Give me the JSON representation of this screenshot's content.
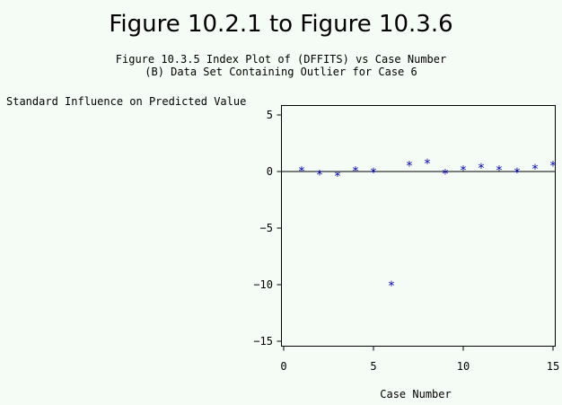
{
  "chart_data": {
    "type": "scatter",
    "title": "Figure 10.2.1 to Figure 10.3.6",
    "subtitle_lines": [
      "Figure 10.3.5 Index Plot of (DFFITS) vs Case Number",
      "(B) Data Set Containing Outlier for Case 6"
    ],
    "ylabel": "Standard Influence on Predicted Value",
    "xlabel": "Case Number",
    "xlim": [
      0,
      15
    ],
    "ylim": [
      -15,
      5
    ],
    "x_ticks": [
      0,
      5,
      10,
      15
    ],
    "y_ticks": [
      5,
      0,
      -5,
      -10,
      -15
    ],
    "x_tick_labels": [
      "0",
      "5",
      "10",
      "15"
    ],
    "y_tick_labels": [
      "5",
      "0",
      "−5",
      "−10",
      "−15"
    ],
    "reference_line_y": 0,
    "marker": "*",
    "marker_color": "#0000cc",
    "points": [
      {
        "x": 1,
        "y": 0.1
      },
      {
        "x": 2,
        "y": -0.2
      },
      {
        "x": 3,
        "y": -0.3
      },
      {
        "x": 4,
        "y": 0.1
      },
      {
        "x": 5,
        "y": 0.0
      },
      {
        "x": 6,
        "y": -10.0
      },
      {
        "x": 7,
        "y": 0.6
      },
      {
        "x": 8,
        "y": 0.8
      },
      {
        "x": 9,
        "y": -0.1
      },
      {
        "x": 10,
        "y": 0.2
      },
      {
        "x": 11,
        "y": 0.4
      },
      {
        "x": 12,
        "y": 0.2
      },
      {
        "x": 13,
        "y": 0.0
      },
      {
        "x": 14,
        "y": 0.3
      },
      {
        "x": 15,
        "y": 0.6
      }
    ]
  }
}
